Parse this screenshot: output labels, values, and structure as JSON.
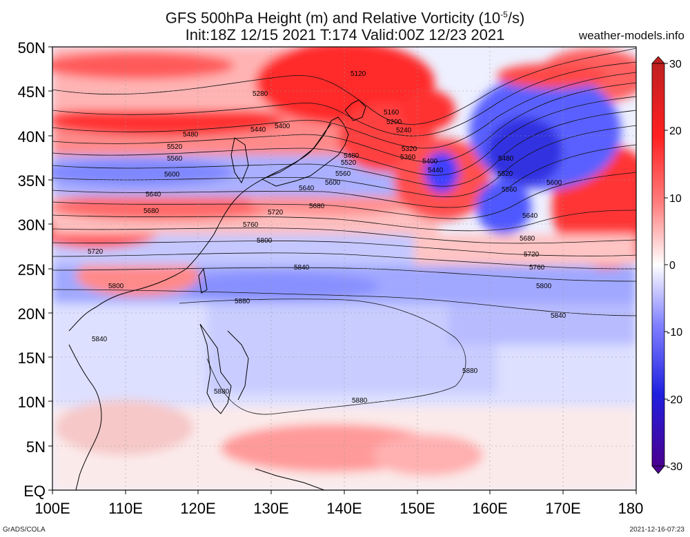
{
  "header": {
    "title_line1": "GFS 500hPa Height (m) and Relative Vorticity (10",
    "title_exp": "-5",
    "title_line1_end": "/s)",
    "title_line2": "Init:18Z 12/15 2021 T:174 Valid:00Z 12/23 2021",
    "site": "weather-models.info"
  },
  "footer": {
    "left": "GrADS/COLA",
    "right": "2021-12-16-07:23"
  },
  "map": {
    "lat_labels": [
      "50N",
      "45N",
      "40N",
      "35N",
      "30N",
      "25N",
      "20N",
      "15N",
      "10N",
      "5N",
      "EQ"
    ],
    "lon_labels": [
      "100E",
      "110E",
      "120E",
      "130E",
      "140E",
      "150E",
      "160E",
      "170E",
      "180"
    ],
    "contour_labels": [
      "5120",
      "5160",
      "5200",
      "5240",
      "5280",
      "5320",
      "5360",
      "5400",
      "5440",
      "5480",
      "5520",
      "5560",
      "5600",
      "5640",
      "5680",
      "5720",
      "5760",
      "5800",
      "5840",
      "5880"
    ]
  },
  "colorbar": {
    "ticks": [
      "30",
      "20",
      "10",
      "0",
      "-10",
      "-20",
      "-30"
    ],
    "colors": [
      "#c82828",
      "#ff3c3c",
      "#ff9a9a",
      "#ffffff",
      "#9aa0ff",
      "#3c3cff",
      "#5000a0"
    ]
  }
}
